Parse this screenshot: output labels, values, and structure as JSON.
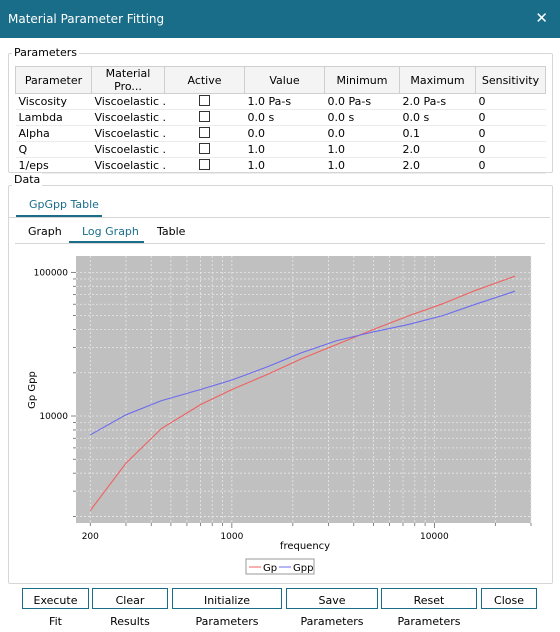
{
  "window": {
    "title": "Material Parameter Fitting",
    "close_glyph": "✕"
  },
  "parameters": {
    "group_label": "Parameters",
    "columns": [
      "Parameter",
      "Material Pro...",
      "Active",
      "Value",
      "Minimum",
      "Maximum",
      "Sensitivity"
    ],
    "rows": [
      {
        "parameter": "Viscosity",
        "material": "Viscoelastic ...",
        "active": false,
        "value": "1.0 Pa-s",
        "minimum": "0.0 Pa-s",
        "maximum": "2.0 Pa-s",
        "sensitivity": "0"
      },
      {
        "parameter": "Lambda",
        "material": "Viscoelastic ...",
        "active": false,
        "value": "0.0 s",
        "minimum": "0.0 s",
        "maximum": "0.0 s",
        "sensitivity": "0"
      },
      {
        "parameter": "Alpha",
        "material": "Viscoelastic ...",
        "active": false,
        "value": "0.0",
        "minimum": "0.0",
        "maximum": "0.1",
        "sensitivity": "0"
      },
      {
        "parameter": "Q",
        "material": "Viscoelastic ...",
        "active": false,
        "value": "1.0",
        "minimum": "1.0",
        "maximum": "2.0",
        "sensitivity": "0"
      },
      {
        "parameter": "1/eps",
        "material": "Viscoelastic ...",
        "active": false,
        "value": "1.0",
        "minimum": "1.0",
        "maximum": "2.0",
        "sensitivity": "0"
      }
    ]
  },
  "data_section": {
    "group_label": "Data",
    "outer_tabs": [
      {
        "label": "GpGpp Table",
        "active": true
      }
    ],
    "inner_tabs": [
      {
        "label": "Graph",
        "active": false
      },
      {
        "label": "Log Graph",
        "active": true
      },
      {
        "label": "Table",
        "active": false
      }
    ]
  },
  "chart_data": {
    "type": "line",
    "title": "",
    "xlabel": "frequency",
    "ylabel": "Gp Gpp",
    "xscale": "log",
    "yscale": "log",
    "xlim": [
      170,
      30000
    ],
    "ylim": [
      1800,
      130000
    ],
    "x_ticks": [
      200,
      1000,
      10000
    ],
    "y_ticks": [
      10000,
      100000
    ],
    "grid": true,
    "legend_position": "bottom-center",
    "plot_background": "#c0c0c0",
    "series": [
      {
        "name": "Gp",
        "color": "#f06060",
        "x": [
          200,
          300,
          450,
          700,
          1000,
          1500,
          2200,
          3300,
          5000,
          7500,
          11000,
          16000,
          25000
        ],
        "y": [
          2200,
          4700,
          8200,
          12000,
          15300,
          19500,
          25000,
          31500,
          40000,
          50000,
          60500,
          75000,
          94000
        ]
      },
      {
        "name": "Gpp",
        "color": "#6b6bf0",
        "x": [
          200,
          300,
          450,
          700,
          1000,
          1500,
          2200,
          3300,
          5000,
          7500,
          11000,
          16000,
          25000
        ],
        "y": [
          7400,
          10200,
          12800,
          15300,
          17800,
          22000,
          27500,
          33500,
          38500,
          43500,
          50000,
          60000,
          74000
        ]
      }
    ]
  },
  "buttons": {
    "execute_fit": "Execute Fit",
    "clear_results": "Clear Results",
    "initialize_parameters": "Initialize Parameters",
    "save_parameters": "Save Parameters",
    "reset_parameters": "Reset Parameters",
    "close": "Close"
  },
  "colors": {
    "accent": "#1a6d89"
  }
}
